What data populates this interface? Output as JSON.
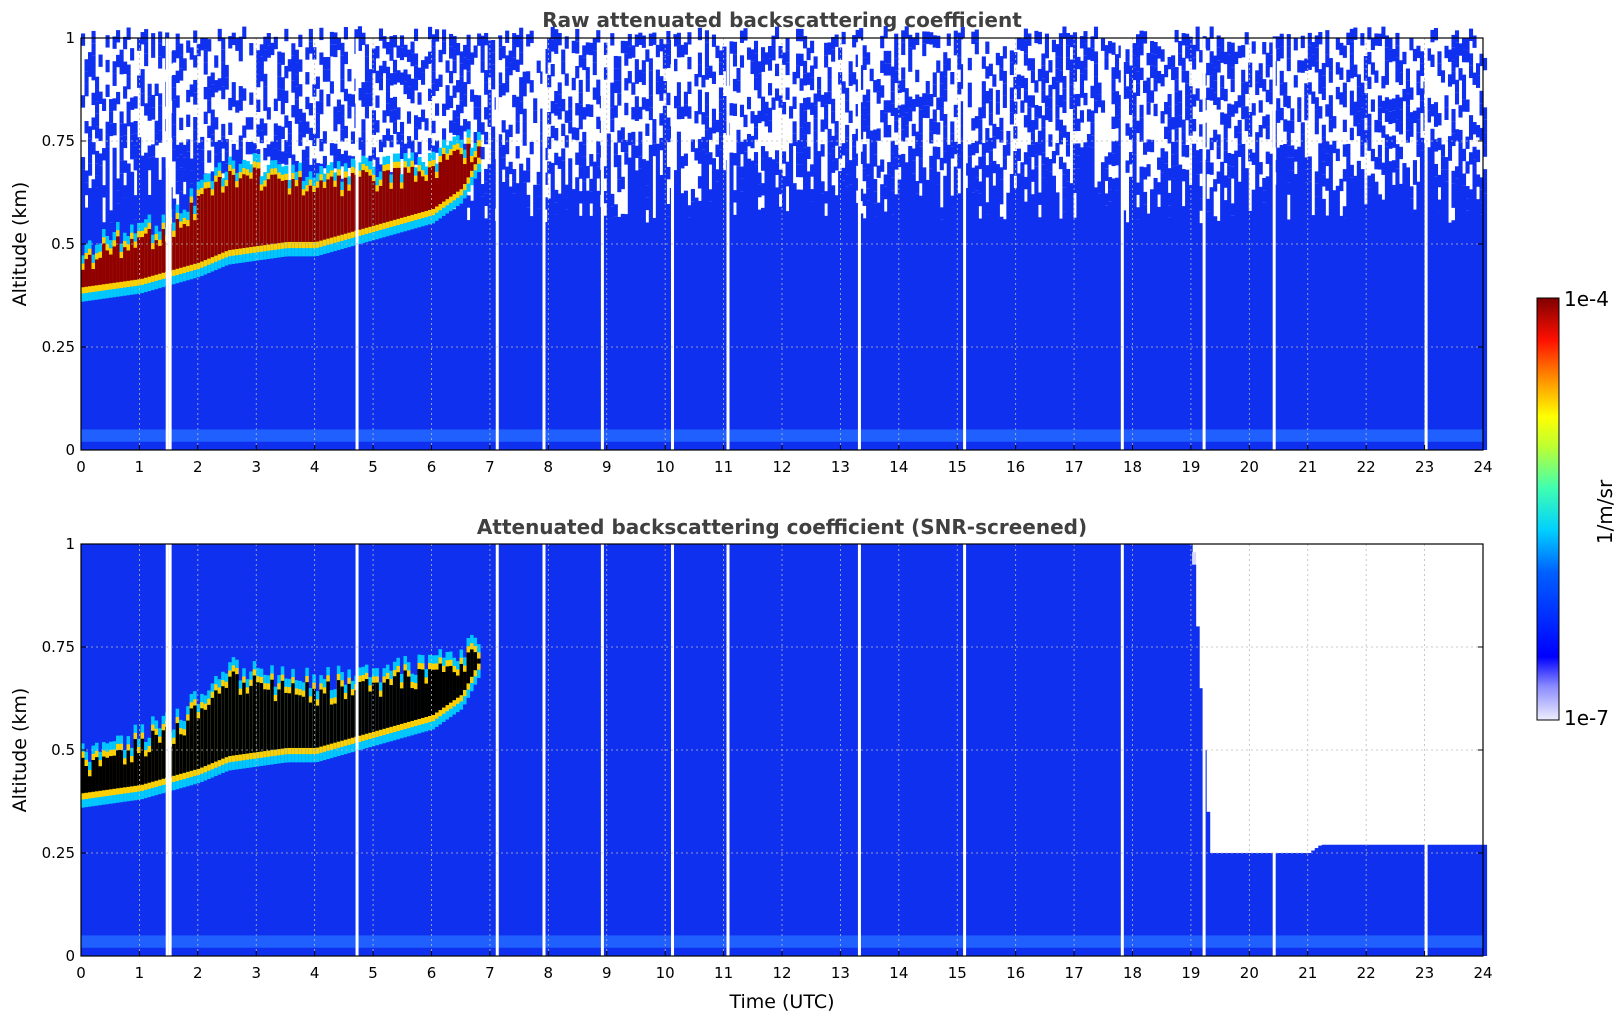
{
  "chart_data": [
    {
      "type": "heatmap",
      "title": "Raw attenuated backscattering coefficient",
      "xlabel": "",
      "ylabel": "Altitude (km)",
      "xlim": [
        0,
        24
      ],
      "ylim": [
        0,
        1
      ],
      "x_ticks": [
        "0",
        "1",
        "2",
        "3",
        "4",
        "5",
        "6",
        "7",
        "8",
        "9",
        "10",
        "11",
        "12",
        "13",
        "14",
        "15",
        "16",
        "17",
        "18",
        "19",
        "20",
        "21",
        "22",
        "23",
        "24"
      ],
      "y_ticks": [
        "0",
        "0.25",
        "0.5",
        "0.75",
        "1"
      ],
      "grid": true,
      "colorscale": "log jet, 1e-7 to 1e-4 1/m/sr",
      "cloud_layer_altitude_km": {
        "time_utc": [
          0,
          0.5,
          1,
          1.5,
          2,
          2.5,
          3,
          3.5,
          4,
          4.5,
          5,
          5.5,
          6,
          6.5,
          6.8
        ],
        "base": [
          0.36,
          0.37,
          0.38,
          0.4,
          0.42,
          0.45,
          0.46,
          0.47,
          0.47,
          0.49,
          0.51,
          0.53,
          0.55,
          0.6,
          0.68
        ],
        "top": [
          0.52,
          0.55,
          0.57,
          0.6,
          0.66,
          0.73,
          0.72,
          0.7,
          0.7,
          0.71,
          0.72,
          0.73,
          0.74,
          0.78,
          0.8
        ]
      },
      "gaps_utc": [
        1.45,
        1.5,
        4.7,
        7.1,
        7.9,
        8.9,
        10.1,
        11.05,
        13.3,
        15.1,
        17.8,
        19.2,
        20.4,
        23.0
      ]
    },
    {
      "type": "heatmap",
      "title": "Attenuated backscattering coefficient (SNR-screened)",
      "xlabel": "Time (UTC)",
      "ylabel": "Altitude (km)",
      "xlim": [
        0,
        24
      ],
      "ylim": [
        0,
        1
      ],
      "x_ticks": [
        "0",
        "1",
        "2",
        "3",
        "4",
        "5",
        "6",
        "7",
        "8",
        "9",
        "10",
        "11",
        "12",
        "13",
        "14",
        "15",
        "16",
        "17",
        "18",
        "19",
        "20",
        "21",
        "22",
        "23",
        "24"
      ],
      "y_ticks": [
        "0",
        "0.25",
        "0.5",
        "0.75",
        "1"
      ],
      "grid": true,
      "colorscale": "log jet, 1e-7 to 1e-4 1/m/sr",
      "cloud_layer_altitude_km": {
        "time_utc": [
          0,
          0.5,
          1,
          1.5,
          2,
          2.5,
          3,
          3.5,
          4,
          4.5,
          5,
          5.5,
          6,
          6.5,
          6.8
        ],
        "base": [
          0.36,
          0.37,
          0.38,
          0.4,
          0.42,
          0.45,
          0.46,
          0.47,
          0.47,
          0.49,
          0.51,
          0.53,
          0.55,
          0.6,
          0.68
        ],
        "top": [
          0.52,
          0.55,
          0.57,
          0.6,
          0.66,
          0.73,
          0.72,
          0.7,
          0.7,
          0.71,
          0.72,
          0.73,
          0.74,
          0.78,
          0.8
        ]
      },
      "screened_top_altitude_km": {
        "time_utc": [
          7,
          19,
          19.3,
          21,
          21.2,
          24
        ],
        "value": [
          1.0,
          1.0,
          0.25,
          0.25,
          0.27,
          0.27
        ]
      },
      "gaps_utc": [
        1.45,
        1.5,
        4.7,
        7.1,
        7.9,
        8.9,
        10.1,
        11.05,
        13.3,
        15.1,
        17.8,
        19.2,
        20.4,
        23.0
      ]
    }
  ],
  "colorbar": {
    "max_label": "1e-4",
    "min_label": "1e-7",
    "unit_label": "1/m/sr"
  }
}
